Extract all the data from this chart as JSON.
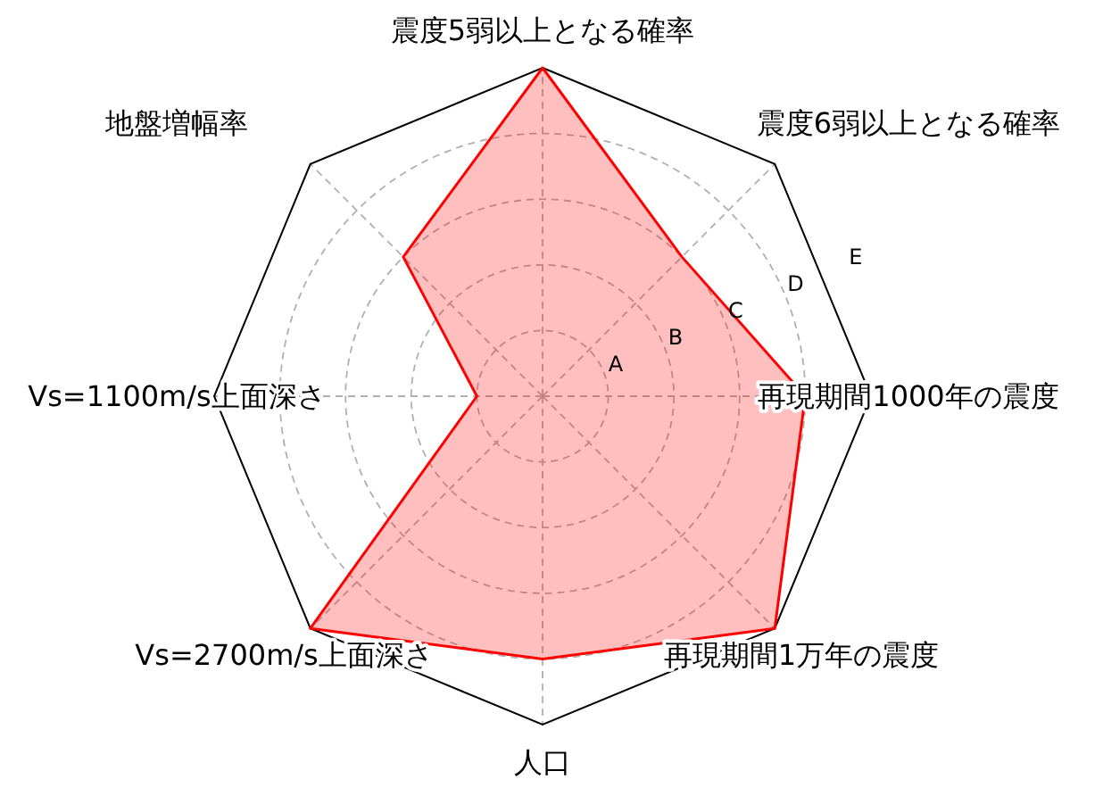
{
  "chart_data": {
    "type": "radar",
    "categories": [
      "震度5弱以上となる確率",
      "震度6弱以上となる確率",
      "再現期間1000年の震度",
      "再現期間1万年の震度",
      "人口",
      "Vs=2700m/s上面深さ",
      "Vs=1100m/s上面深さ",
      "地盤増幅率"
    ],
    "series": [
      {
        "color": "#ff0000",
        "values": [
          5,
          3,
          4,
          5,
          4,
          5,
          1,
          3
        ]
      }
    ],
    "ylim": [
      0,
      5
    ],
    "yticks": [
      {
        "value": 1,
        "label": "A"
      },
      {
        "value": 2,
        "label": "B"
      },
      {
        "value": 3,
        "label": "C"
      },
      {
        "value": 4,
        "label": "D"
      },
      {
        "value": 5,
        "label": "E"
      }
    ],
    "grid": true
  }
}
